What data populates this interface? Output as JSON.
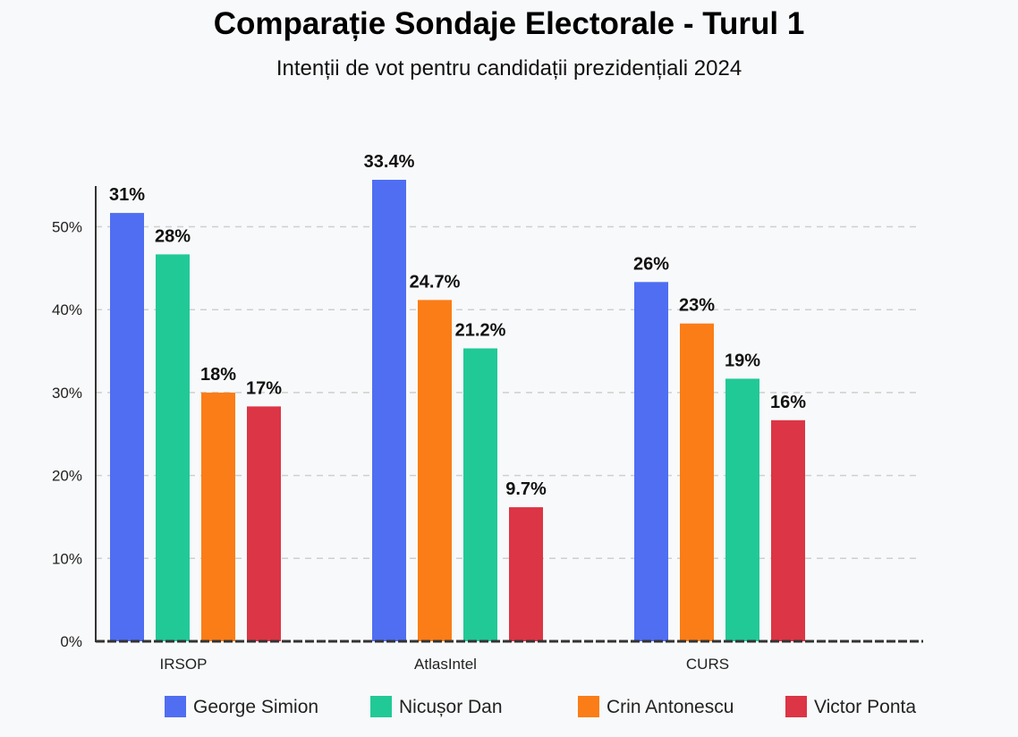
{
  "chart_data": {
    "type": "bar",
    "title": "Comparație Sondaje Electorale - Turul 1",
    "subtitle": "Intenții de vot pentru candidații prezidențiali 2024",
    "categories": [
      "IRSOP",
      "AtlasIntel",
      "CURS"
    ],
    "series": [
      {
        "name": "George Simion",
        "color": "#4f6ef2",
        "values": [
          31,
          33.4,
          26
        ],
        "labels": [
          "31%",
          "33.4%",
          "26%"
        ]
      },
      {
        "name": "Nicușor Dan",
        "color": "#21c997",
        "values": [
          28,
          21.2,
          19
        ],
        "labels": [
          "28%",
          "21.2%",
          "19%"
        ]
      },
      {
        "name": "Crin Antonescu",
        "color": "#fb7d17",
        "values": [
          18,
          24.7,
          23
        ],
        "labels": [
          "18%",
          "24.7%",
          "23%"
        ]
      },
      {
        "name": "Victor Ponta",
        "color": "#dc3545",
        "values": [
          17,
          9.7,
          16
        ],
        "labels": [
          "17%",
          "9.7%",
          "16%"
        ]
      }
    ],
    "bar_order": [
      [
        "George Simion",
        "Nicușor Dan",
        "Crin Antonescu",
        "Victor Ponta"
      ],
      [
        "George Simion",
        "Crin Antonescu",
        "Nicușor Dan",
        "Victor Ponta"
      ],
      [
        "George Simion",
        "Crin Antonescu",
        "Nicușor Dan",
        "Victor Ponta"
      ]
    ],
    "yticks": [
      0,
      10,
      20,
      30,
      40,
      50
    ],
    "ytick_labels": [
      "0%",
      "10%",
      "20%",
      "30%",
      "40%",
      "50%"
    ],
    "yaxis_tick_scale": 0.6,
    "ylim": [
      0,
      55
    ],
    "grid": true,
    "legend": {
      "position": "bottom",
      "items": [
        "George Simion",
        "Nicușor Dan",
        "Crin Antonescu",
        "Victor Ponta"
      ]
    }
  }
}
